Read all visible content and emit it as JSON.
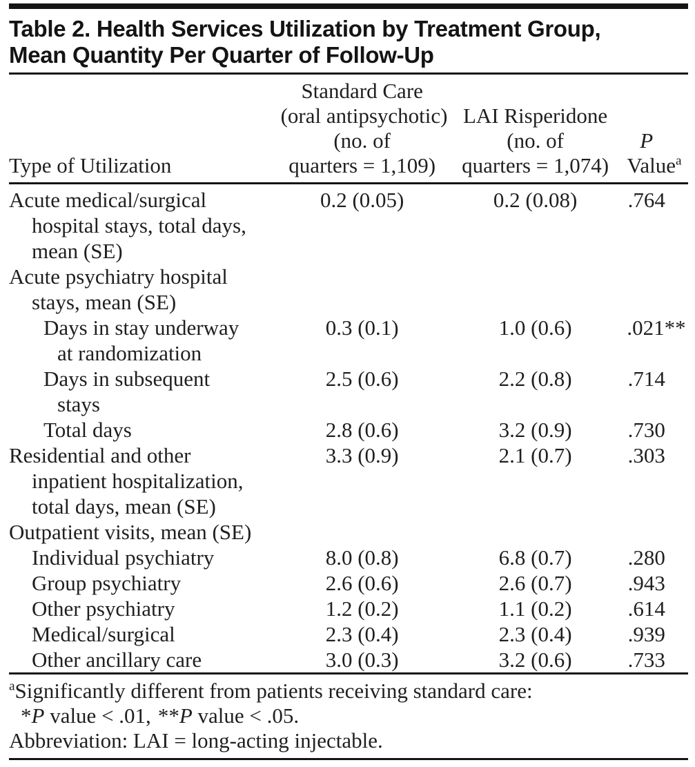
{
  "page": {
    "background": "#ffffff",
    "text_color": "#1f1f1f",
    "rule_color": "#141414"
  },
  "title": {
    "lines": [
      "Table 2. Health Services Utilization by Treatment Group,",
      "Mean Quantity Per Quarter of Follow-Up"
    ]
  },
  "table": {
    "header": {
      "type_label": "Type of Utilization",
      "standard_care_lines": [
        "Standard Care",
        "(oral antipsychotic)",
        "(no. of",
        "quarters = 1,109)"
      ],
      "lai_lines": [
        "LAI Risperidone",
        "(no. of",
        "quarters = 1,074)"
      ],
      "p_line1": "P",
      "p_line2": "Value",
      "p_sup": "a"
    },
    "rows": [
      {
        "label_lines": [
          {
            "text": "Acute medical/surgical",
            "indent": 0
          },
          {
            "text": "hospital stays, total days,",
            "indent": 1
          },
          {
            "text": "mean (SE)",
            "indent": 1
          }
        ],
        "std": "0.2 (0.05)",
        "lai": "0.2 (0.08)",
        "p": ".764"
      },
      {
        "label_lines": [
          {
            "text": "Acute psychiatry hospital",
            "indent": 0
          },
          {
            "text": "stays, mean (SE)",
            "indent": 1
          }
        ],
        "std": "",
        "lai": "",
        "p": ""
      },
      {
        "label_lines": [
          {
            "text": "Days in stay underway",
            "indent": 2
          },
          {
            "text": "at randomization",
            "indent": 3
          }
        ],
        "std": "0.3 (0.1)",
        "lai": "1.0 (0.6)",
        "p": ".021**"
      },
      {
        "label_lines": [
          {
            "text": "Days in subsequent",
            "indent": 2
          },
          {
            "text": "stays",
            "indent": 3
          }
        ],
        "std": "2.5 (0.6)",
        "lai": "2.2 (0.8)",
        "p": ".714"
      },
      {
        "label_lines": [
          {
            "text": "Total days",
            "indent": 2
          }
        ],
        "std": "2.8 (0.6)",
        "lai": "3.2 (0.9)",
        "p": ".730"
      },
      {
        "label_lines": [
          {
            "text": "Residential and other",
            "indent": 0
          },
          {
            "text": "inpatient hospitalization,",
            "indent": 1
          },
          {
            "text": "total days, mean (SE)",
            "indent": 1
          }
        ],
        "std": "3.3 (0.9)",
        "lai": "2.1 (0.7)",
        "p": ".303"
      },
      {
        "label_lines": [
          {
            "text": "Outpatient visits, mean (SE)",
            "indent": 0
          }
        ],
        "std": "",
        "lai": "",
        "p": ""
      },
      {
        "label_lines": [
          {
            "text": "Individual psychiatry",
            "indent": 1
          }
        ],
        "std": "8.0 (0.8)",
        "lai": "6.8 (0.7)",
        "p": ".280"
      },
      {
        "label_lines": [
          {
            "text": "Group psychiatry",
            "indent": 1
          }
        ],
        "std": "2.6 (0.6)",
        "lai": "2.6 (0.7)",
        "p": ".943"
      },
      {
        "label_lines": [
          {
            "text": "Other psychiatry",
            "indent": 1
          }
        ],
        "std": "1.2 (0.2)",
        "lai": "1.1 (0.2)",
        "p": ".614"
      },
      {
        "label_lines": [
          {
            "text": "Medical/surgical",
            "indent": 1
          }
        ],
        "std": "2.3 (0.4)",
        "lai": "2.3 (0.4)",
        "p": ".939"
      },
      {
        "label_lines": [
          {
            "text": "Other ancillary care",
            "indent": 1
          }
        ],
        "std": "3.0 (0.3)",
        "lai": "3.2 (0.6)",
        "p": ".733"
      }
    ]
  },
  "footnotes": {
    "significance": {
      "sup": "a",
      "line1": "Significantly different from patients receiving standard care:",
      "line2": {
        "star1": "*",
        "p1": "P",
        "text1": " value < .01,",
        "star2": "**",
        "p2": "P",
        "text2": " value < .05."
      }
    },
    "abbreviation": "Abbreviation: LAI = long-acting injectable."
  }
}
